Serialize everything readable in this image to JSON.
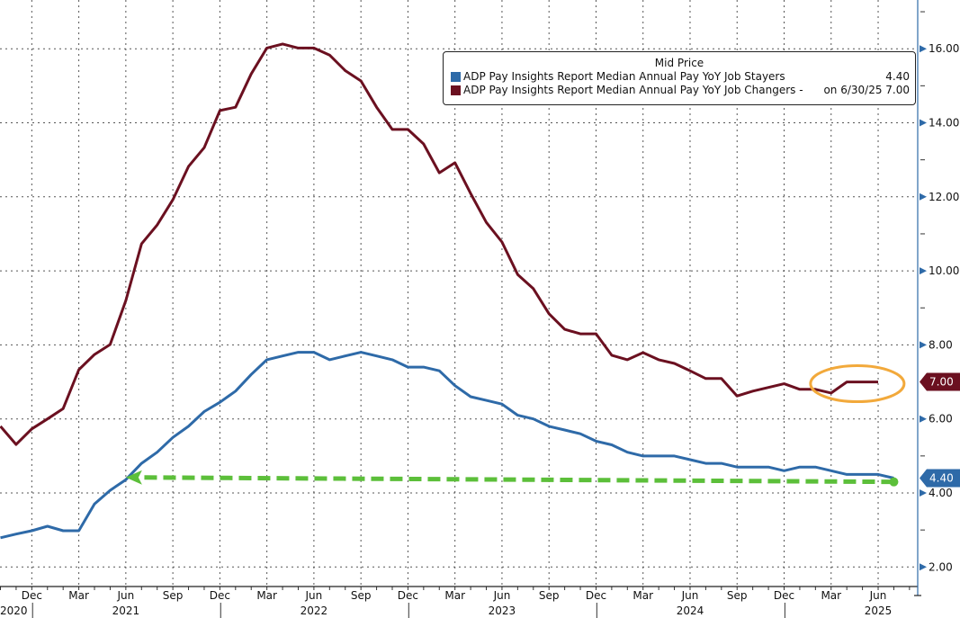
{
  "chart_data": {
    "type": "line",
    "title": "",
    "legend_title": "Mid Price",
    "legend_position": "top-right",
    "grid": true,
    "ylim": [
      1.5,
      17.2
    ],
    "yticks": [
      "16.00",
      "14.00",
      "12.00",
      "10.00",
      "8.00",
      "6.00",
      "4.00",
      "2.00"
    ],
    "ytick_values": [
      16,
      14,
      12,
      10,
      8,
      6,
      4,
      2
    ],
    "x_month_labels": [
      "Dec",
      "Mar",
      "Jun",
      "Sep",
      "Dec",
      "Mar",
      "Jun",
      "Sep",
      "Dec",
      "Mar",
      "Jun",
      "Sep",
      "Dec",
      "Mar",
      "Jun",
      "Sep",
      "Dec",
      "Mar",
      "Jun"
    ],
    "x_month_index": [
      2,
      5,
      8,
      11,
      14,
      17,
      20,
      23,
      26,
      29,
      32,
      35,
      38,
      41,
      44,
      47,
      50,
      53,
      56
    ],
    "x_year_labels": [
      "2020",
      "2021",
      "2022",
      "2023",
      "2024",
      "2025"
    ],
    "x_year_index": [
      -1.2,
      8,
      20,
      32,
      44,
      56
    ],
    "x_start": "Oct 2020",
    "series": [
      {
        "name": "ADP Pay Insights Report Median Annual Pay YoY Job Stayers",
        "legend_value": "4.40",
        "last_label": "4.40",
        "color": "#2e6aa8",
        "values": [
          2.79,
          2.89,
          2.98,
          3.1,
          2.98,
          2.98,
          3.7,
          4.07,
          4.36,
          4.8,
          5.1,
          5.5,
          5.8,
          6.2,
          6.45,
          6.75,
          7.2,
          7.6,
          7.7,
          7.8,
          7.8,
          7.6,
          7.7,
          7.8,
          7.7,
          7.6,
          7.4,
          7.4,
          7.3,
          6.9,
          6.6,
          6.5,
          6.4,
          6.1,
          6.0,
          5.8,
          5.7,
          5.6,
          5.4,
          5.3,
          5.1,
          5.0,
          5.0,
          5.0,
          4.9,
          4.8,
          4.8,
          4.7,
          4.7,
          4.7,
          4.6,
          4.7,
          4.7,
          4.6,
          4.5,
          4.5,
          4.5,
          4.4
        ]
      },
      {
        "name": "ADP Pay Insights Report Median Annual Pay YoY Job Changers -",
        "legend_value": "on 6/30/25 7.00",
        "last_label": "7.00",
        "color": "#6b1020",
        "values": [
          5.8,
          5.31,
          5.73,
          6.0,
          6.28,
          7.33,
          7.74,
          8.01,
          9.2,
          10.73,
          11.24,
          11.92,
          12.82,
          13.33,
          14.33,
          14.42,
          15.32,
          16.02,
          16.13,
          16.02,
          16.02,
          15.83,
          15.41,
          15.13,
          14.42,
          13.82,
          13.82,
          13.43,
          12.65,
          12.92,
          12.09,
          11.31,
          10.78,
          9.9,
          9.52,
          8.84,
          8.42,
          8.3,
          8.3,
          7.72,
          7.6,
          7.79,
          7.6,
          7.5,
          7.3,
          7.09,
          7.09,
          6.62,
          6.75,
          6.85,
          6.95,
          6.8,
          6.8,
          6.7,
          7.0,
          7.0,
          7.0
        ]
      }
    ],
    "annotations": [
      {
        "type": "dashed-arrow",
        "color": "#5cbf3a",
        "from_index": 57,
        "from_value": 4.3,
        "to_index": 8,
        "to_value": 4.42
      },
      {
        "type": "ellipse",
        "color": "#f2a93b",
        "center_index": 54.5,
        "center_value": 7.0
      }
    ]
  }
}
